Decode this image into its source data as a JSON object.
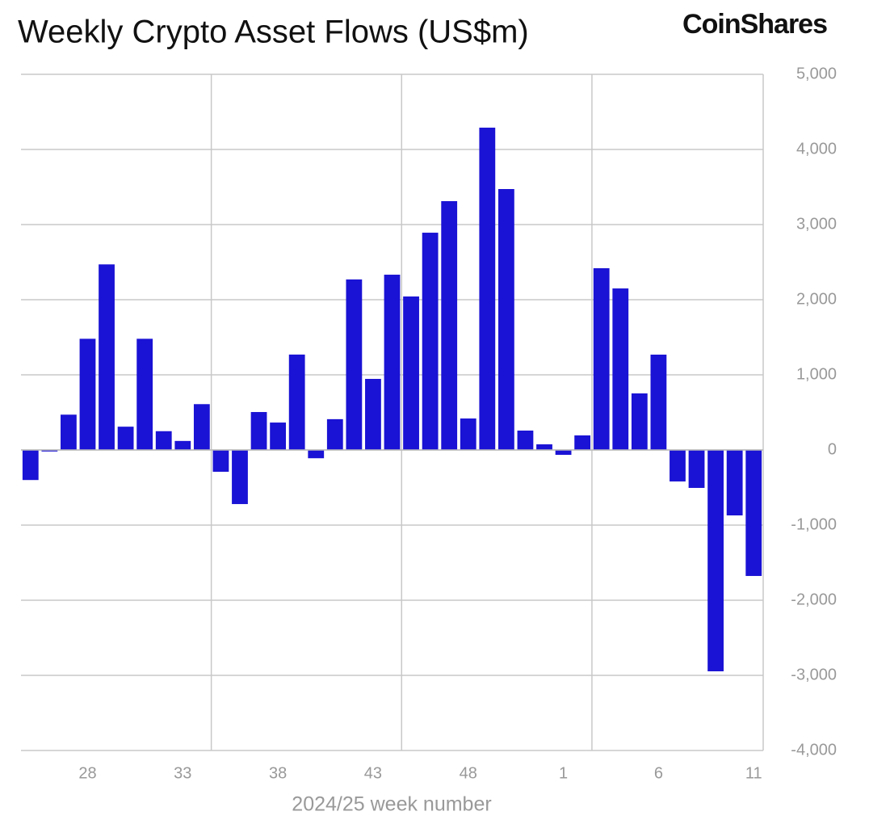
{
  "brand": "CoinShares",
  "chart_data": {
    "type": "bar",
    "title": "Weekly Crypto Asset Flows (US$m)",
    "xlabel": "2024/25 week number",
    "categories": [
      null,
      null,
      null,
      "28",
      null,
      null,
      null,
      null,
      "33",
      null,
      null,
      null,
      null,
      "38",
      null,
      null,
      null,
      null,
      "43",
      null,
      null,
      null,
      null,
      "48",
      null,
      null,
      null,
      null,
      "1",
      null,
      null,
      null,
      null,
      "6",
      null,
      null,
      null,
      null,
      "11"
    ],
    "values": [
      -400,
      -20,
      470,
      1480,
      2470,
      310,
      1480,
      250,
      120,
      610,
      -290,
      -720,
      505,
      365,
      1270,
      -110,
      410,
      2270,
      946,
      2333,
      2043,
      2892,
      3312,
      419,
      4290,
      3473,
      258,
      75,
      -65,
      194,
      2419,
      2150,
      753,
      1269,
      -419,
      -505,
      -2946,
      -871,
      -1677
    ],
    "color": "#1a12d4",
    "ylim": [
      -4000,
      5000
    ],
    "yticks": [
      {
        "value": -4000,
        "label": "-4,000"
      },
      {
        "value": -3000,
        "label": "-3,000"
      },
      {
        "value": -2000,
        "label": "-2,000"
      },
      {
        "value": -1000,
        "label": "-1,000"
      },
      0,
      {
        "value": 1000,
        "label": "1,000"
      },
      {
        "value": 2000,
        "label": "2,000"
      },
      {
        "value": 3000,
        "label": "3,000"
      },
      {
        "value": 4000,
        "label": "4,000"
      },
      {
        "value": 5000,
        "label": "5,000"
      }
    ],
    "grid": true
  }
}
